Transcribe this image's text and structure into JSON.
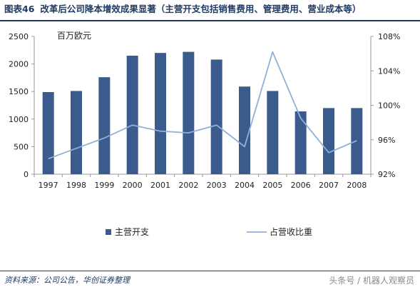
{
  "header": {
    "label": "图表46",
    "title": "改革后公司降本增效成果显著（主营开支包括销售费用、管理费用、营业成本等）"
  },
  "source": "资料来源：公司公告，华创证券整理",
  "watermark": "头条号 / 机器人观察员",
  "colors": {
    "bar": "#3b5b8c",
    "line": "#8fb0da",
    "axis": "#9a9a9a",
    "text": "#222222"
  },
  "chart_data": {
    "type": "bar+line",
    "unit_label": "百万欧元",
    "categories": [
      "1997",
      "1998",
      "1999",
      "2000",
      "2001",
      "2002",
      "2003",
      "2004",
      "2005",
      "2006",
      "2007",
      "2008"
    ],
    "series": [
      {
        "name": "主营开支",
        "type": "bar",
        "axis": "left",
        "values": [
          1490,
          1510,
          1760,
          2150,
          2200,
          2220,
          2080,
          1590,
          1510,
          1140,
          1200,
          1200
        ]
      },
      {
        "name": "占营收比重",
        "type": "line",
        "axis": "right",
        "values": [
          93.8,
          95.0,
          96.2,
          97.7,
          97.0,
          96.8,
          97.7,
          95.2,
          106.2,
          98.5,
          94.5,
          95.9
        ]
      }
    ],
    "y_left": {
      "min": 0,
      "max": 2500,
      "ticks": [
        0,
        500,
        1000,
        1500,
        2000,
        2500
      ]
    },
    "y_right": {
      "min": 92,
      "max": 108,
      "ticks": [
        92,
        96,
        100,
        104,
        108
      ],
      "tick_labels": [
        "92%",
        "96%",
        "100%",
        "104%",
        "108%"
      ]
    },
    "legend_placement": "bottom",
    "grid": false
  }
}
